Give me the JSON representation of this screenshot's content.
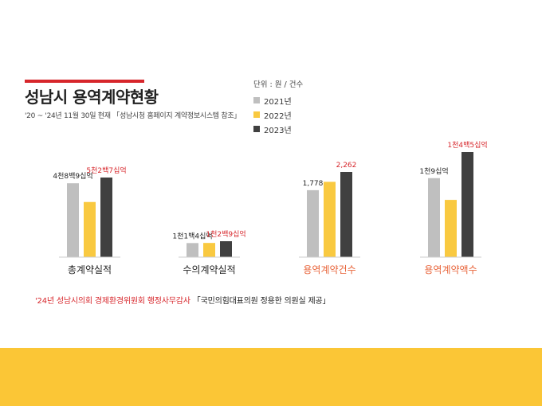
{
  "header": {
    "title": "성남시 용역계약현황",
    "subtitle": "'20 ~ '24년 11월 30일 현재 「성남시청 홈페이지 계약정보시스템 참조」",
    "unit": "단위 : 원 / 건수"
  },
  "legend": [
    {
      "label": "2021년",
      "color": "#bfbfbf"
    },
    {
      "label": "2022년",
      "color": "#f9c940"
    },
    {
      "label": "2023년",
      "color": "#404040"
    }
  ],
  "footnote": {
    "source_red": "'24년 성남시의회 경제환경위원회 행정사무감사",
    "source_dark": "「국민의힘대표의원 정용한 의원실 제공」"
  },
  "chart_data": {
    "type": "bar",
    "series": [
      {
        "name": "2021년",
        "values": [
          48.9,
          11.4,
          1778,
          1.09
        ]
      },
      {
        "name": "2022년",
        "values": [
          36.5,
          11.5,
          2000,
          0.79
        ]
      },
      {
        "name": "2023년",
        "values": [
          52.7,
          12.9,
          2262,
          1.45
        ]
      }
    ],
    "categories": [
      "총계약실적",
      "수의계약실적",
      "용역계약건수",
      "용역계약액수"
    ],
    "value_labels": [
      [
        {
          "series": 0,
          "text": "4천8백9십억",
          "color": "#222222"
        },
        {
          "series": 2,
          "text": "5천2백7십억",
          "color": "#d7262b"
        }
      ],
      [
        {
          "series": 0,
          "text": "1천1백4십억",
          "color": "#222222"
        },
        {
          "series": 2,
          "text": "1천2백9십억",
          "color": "#d7262b"
        }
      ],
      [
        {
          "series": 0,
          "text": "1,778",
          "color": "#222222"
        },
        {
          "series": 2,
          "text": "2,262",
          "color": "#d7262b"
        }
      ],
      [
        {
          "series": 0,
          "text": "1천9십억",
          "color": "#222222"
        },
        {
          "series": 2,
          "text": "1천4백5십억",
          "color": "#d7262b"
        }
      ]
    ],
    "category_label_colors": [
      "#222222",
      "#222222",
      "#e8643a",
      "#e8643a"
    ]
  }
}
